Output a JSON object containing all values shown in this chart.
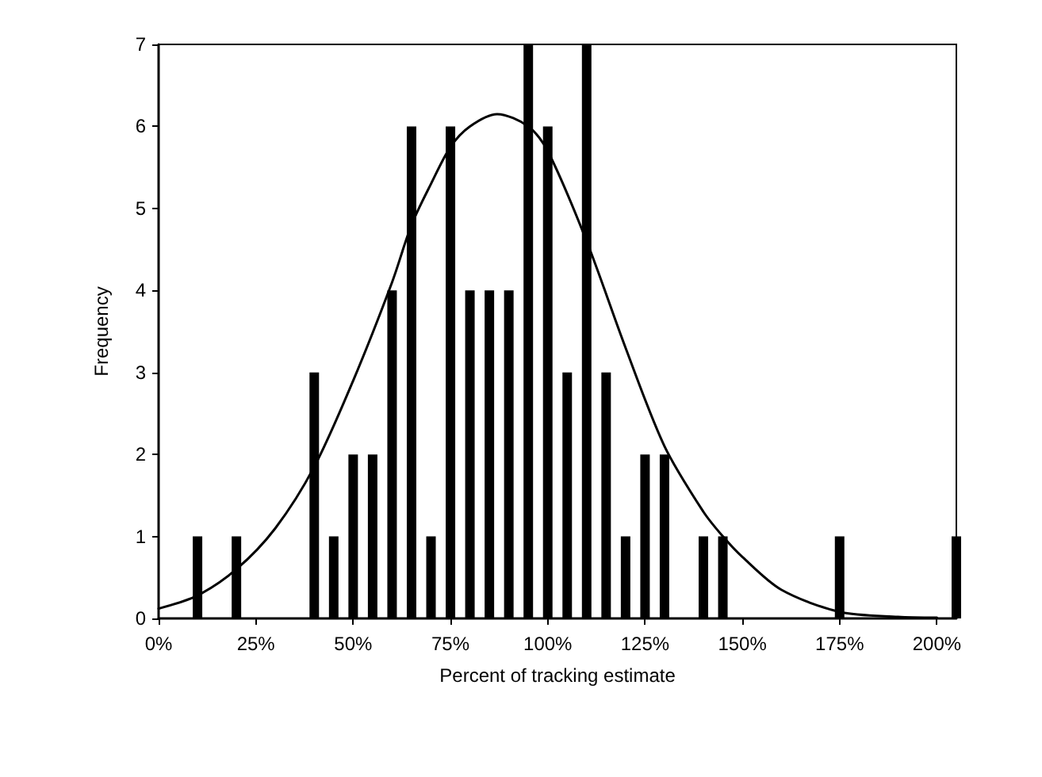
{
  "chart_data": {
    "type": "bar",
    "xlabel": "Percent of tracking estimate",
    "ylabel": "Frequency",
    "x": [
      10,
      20,
      40,
      45,
      50,
      55,
      60,
      65,
      70,
      75,
      80,
      85,
      90,
      95,
      100,
      105,
      110,
      115,
      120,
      125,
      130,
      140,
      145,
      175,
      205
    ],
    "series": [
      {
        "color": "#000000",
        "values": [
          1,
          1,
          3,
          1,
          2,
          2,
          4,
          6,
          1,
          6,
          4,
          4,
          4,
          7,
          6,
          3,
          7,
          3,
          1,
          2,
          2,
          1,
          1,
          1,
          1
        ]
      },
      {
        "type": "line",
        "color": "#000000",
        "marker": "none",
        "line_style": "solid",
        "x": [
          0,
          10,
          20,
          30,
          40,
          50,
          60,
          65,
          70,
          75,
          80,
          87,
          95,
          100,
          110,
          120,
          130,
          140,
          145,
          150,
          160,
          175,
          190,
          200
        ],
        "values": [
          0.12,
          0.28,
          0.6,
          1.1,
          1.85,
          2.9,
          4.1,
          4.8,
          5.3,
          5.75,
          6.0,
          6.15,
          6.0,
          5.7,
          4.6,
          3.3,
          2.1,
          1.3,
          1.0,
          0.75,
          0.35,
          0.08,
          0.02,
          0.01
        ]
      }
    ],
    "xlim": [
      0,
      205
    ],
    "ylim": [
      0,
      7
    ],
    "xticks": [
      {
        "value": 0,
        "label": "0%"
      },
      {
        "value": 25,
        "label": "25%"
      },
      {
        "value": 50,
        "label": "50%"
      },
      {
        "value": 75,
        "label": "75%"
      },
      {
        "value": 100,
        "label": "100%"
      },
      {
        "value": 125,
        "label": "125%"
      },
      {
        "value": 150,
        "label": "150%"
      },
      {
        "value": 175,
        "label": "175%"
      },
      {
        "value": 200,
        "label": "200%"
      }
    ],
    "yticks": [
      0,
      1,
      2,
      3,
      4,
      5,
      6,
      7
    ],
    "grid": false
  }
}
